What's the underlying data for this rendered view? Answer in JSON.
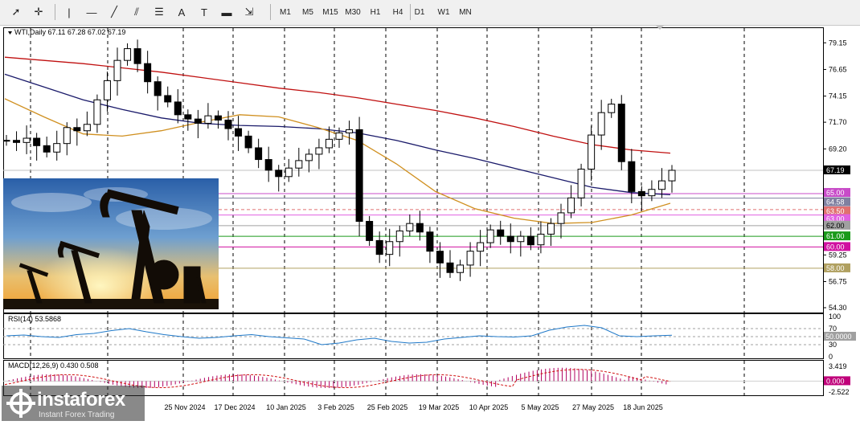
{
  "toolbar": {
    "tools": [
      {
        "name": "cursor-tool",
        "glyph": "➚"
      },
      {
        "name": "crosshair-tool",
        "glyph": "✛"
      },
      {
        "name": "vertical-line-tool",
        "glyph": "|"
      },
      {
        "name": "horizontal-line-tool",
        "glyph": "—"
      },
      {
        "name": "trendline-tool",
        "glyph": "╱"
      },
      {
        "name": "equidistant-channel-tool",
        "glyph": "⫽"
      },
      {
        "name": "fibonacci-tool",
        "glyph": "☰"
      },
      {
        "name": "text-tool",
        "glyph": "A"
      },
      {
        "name": "text-label-tool",
        "glyph": "T"
      },
      {
        "name": "rectangle-tool",
        "glyph": "▬"
      },
      {
        "name": "arrows-tool",
        "glyph": "⇲"
      }
    ],
    "timeframes": [
      "M1",
      "M5",
      "M15",
      "M30",
      "H1",
      "H4",
      "D1",
      "W1",
      "MN"
    ]
  },
  "chart": {
    "symbol_label": "WTI,Daily",
    "ohlc_label": "67.11 67.28 67.02 67.19",
    "price_ticks": [
      "79.15",
      "76.65",
      "74.15",
      "71.70",
      "69.20",
      "59.25",
      "56.75",
      "54.30"
    ],
    "price_labels": [
      {
        "text": "67.19",
        "bg": "#000000",
        "fg": "#ffffff"
      },
      {
        "text": "65.00",
        "bg": "#c84bc8",
        "fg": "#ffffff"
      },
      {
        "text": "64.58",
        "bg": "#8080a0",
        "fg": "#ffffff"
      },
      {
        "text": "63.50",
        "bg": "#e07070",
        "fg": "#ffffff"
      },
      {
        "text": "63.00",
        "bg": "#e060e0",
        "fg": "#ffffff"
      },
      {
        "text": "62.00",
        "bg": "#a0a0a0",
        "fg": "#000000"
      },
      {
        "text": "61.00",
        "bg": "#1a9a1a",
        "fg": "#ffffff"
      },
      {
        "text": "60.00",
        "bg": "#d010a0",
        "fg": "#ffffff"
      },
      {
        "text": "58.00",
        "bg": "#b0a060",
        "fg": "#ffffff"
      }
    ],
    "date_labels": [
      "25 Nov 2024",
      "17 Dec 2024",
      "10 Jan 2025",
      "3 Feb 2025",
      "25 Feb 2025",
      "19 Mar 2025",
      "10 Apr 2025",
      "5 May 2025",
      "27 May 2025",
      "18 Jun 2025"
    ],
    "colors": {
      "ma_red": "#c01010",
      "ma_blue": "#1a1a6a",
      "ma_orange": "#d09020",
      "candle": "#000000"
    }
  },
  "rsi": {
    "label": "RSI(14) 53.5868",
    "scale": [
      "100",
      "70",
      "50.0000",
      "30",
      "0"
    ],
    "line_color": "#1e78c8"
  },
  "macd": {
    "label": "MACD(12,26,9) 0.430 0.508",
    "scale": [
      "3.419",
      "0.000",
      "-2.522"
    ],
    "hist_color": "#b00060",
    "signal_color": "#d01010"
  },
  "chart_data": {
    "type": "candlestick",
    "symbol": "WTI",
    "timeframe": "Daily",
    "ohlc_last": {
      "open": 67.11,
      "high": 67.28,
      "low": 67.02,
      "close": 67.19
    },
    "x_dates": [
      "25 Nov 2024",
      "17 Dec 2024",
      "10 Jan 2025",
      "3 Feb 2025",
      "25 Feb 2025",
      "19 Mar 2025",
      "10 Apr 2025",
      "5 May 2025",
      "27 May 2025",
      "18 Jun 2025"
    ],
    "closes_approx": [
      70.0,
      69.8,
      70.2,
      69.5,
      68.9,
      69.7,
      71.2,
      70.9,
      71.5,
      73.8,
      75.6,
      77.5,
      78.6,
      77.2,
      75.5,
      74.2,
      73.6,
      72.4,
      72.0,
      71.6,
      72.3,
      71.9,
      71.1,
      70.4,
      69.3,
      68.2,
      67.2,
      66.6,
      67.4,
      68.1,
      68.7,
      69.3,
      70.1,
      70.7,
      71.0,
      62.4,
      60.6,
      59.3,
      60.5,
      61.5,
      62.2,
      61.4,
      59.6,
      58.5,
      57.6,
      58.3,
      59.6,
      60.4,
      61.6,
      61.0,
      60.5,
      61.0,
      60.2,
      61.2,
      62.2,
      63.2,
      64.6,
      67.3,
      70.5,
      72.6,
      73.4,
      68.0,
      65.2,
      64.8,
      65.4,
      66.2,
      67.19
    ],
    "ylim": [
      54.3,
      80.0
    ],
    "levels": [
      65.0,
      64.58,
      63.5,
      63.0,
      62.0,
      61.0,
      60.0,
      58.0
    ],
    "ma_series": [
      {
        "color": "#c01010",
        "values": [
          77.8,
          77.5,
          77.2,
          76.8,
          76.4,
          75.9,
          75.4,
          74.9,
          74.5,
          74.0,
          73.4,
          72.8,
          72.1,
          71.3,
          70.4,
          69.6,
          69.1,
          68.8
        ]
      },
      {
        "color": "#1a1a6a",
        "values": [
          76.2,
          75.0,
          73.8,
          72.9,
          72.1,
          71.6,
          71.4,
          71.3,
          71.1,
          70.7,
          70.0,
          69.1,
          68.3,
          67.4,
          66.5,
          65.6,
          65.1,
          64.9
        ]
      },
      {
        "color": "#d09020",
        "values": [
          73.9,
          72.2,
          70.6,
          70.4,
          70.9,
          71.7,
          72.4,
          72.2,
          71.2,
          70.0,
          67.8,
          65.2,
          63.6,
          62.7,
          62.2,
          62.3,
          63.0,
          64.1
        ]
      }
    ],
    "rsi": {
      "last": 53.5868,
      "ylim": [
        0,
        100
      ],
      "values": [
        52,
        54,
        50,
        48,
        55,
        58,
        65,
        70,
        62,
        55,
        50,
        46,
        48,
        52,
        55,
        50,
        47,
        44,
        30,
        34,
        42,
        46,
        38,
        34,
        36,
        44,
        48,
        52,
        50,
        49,
        52,
        66,
        74,
        78,
        72,
        52,
        50,
        52,
        53.59
      ]
    },
    "macd": {
      "macd": 0.43,
      "signal": 0.508,
      "ylim": [
        -2.522,
        3.419
      ]
    }
  }
}
